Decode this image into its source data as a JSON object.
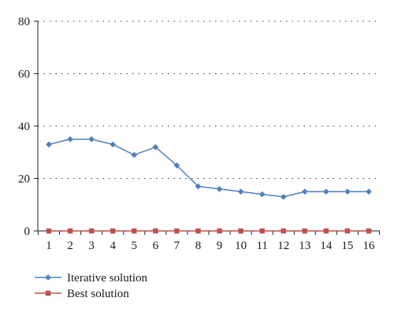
{
  "chart_data": {
    "type": "line",
    "title": "",
    "xlabel": "",
    "ylabel": "",
    "categories": [
      "1",
      "2",
      "3",
      "4",
      "5",
      "6",
      "7",
      "8",
      "9",
      "10",
      "11",
      "12",
      "13",
      "14",
      "15",
      "16"
    ],
    "ylim": [
      0,
      80
    ],
    "yticks": [
      "0",
      "20",
      "40",
      "60",
      "80"
    ],
    "grid": "horizontal dotted",
    "legend_position": "bottom-left",
    "series": [
      {
        "name": "Iterative solution",
        "color": "#4f81bd",
        "marker": "diamond",
        "values": [
          33,
          35,
          35,
          33,
          29,
          32,
          25,
          17,
          16,
          15,
          14,
          13,
          15,
          15,
          15,
          15
        ]
      },
      {
        "name": "Best solution",
        "color": "#c0504d",
        "marker": "square",
        "values": [
          0,
          0,
          0,
          0,
          0,
          0,
          0,
          0,
          0,
          0,
          0,
          0,
          0,
          0,
          0,
          0
        ]
      }
    ]
  }
}
